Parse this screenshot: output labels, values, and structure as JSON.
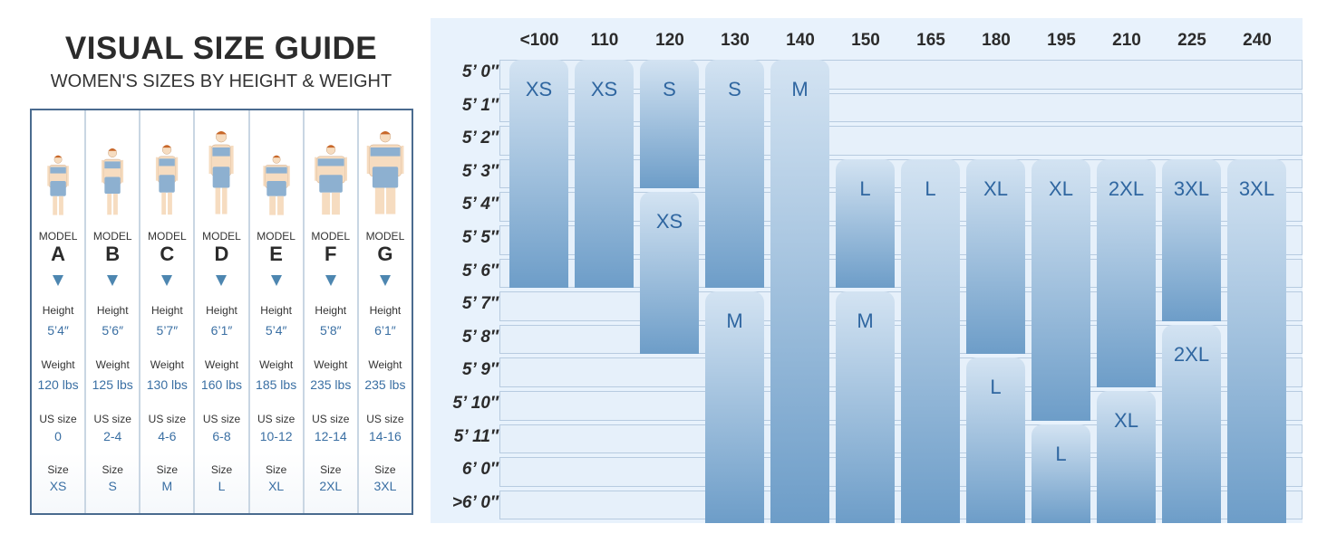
{
  "title": "VISUAL SIZE GUIDE",
  "subtitle": "WOMEN'S SIZES BY HEIGHT & WEIGHT",
  "labels": {
    "model": "MODEL",
    "height": "Height",
    "weight": "Weight",
    "us_size": "US size",
    "size": "Size"
  },
  "models": [
    {
      "letter": "A",
      "height": "5’4″",
      "weight": "120 lbs",
      "us_size": "0",
      "size": "XS"
    },
    {
      "letter": "B",
      "height": "5’6″",
      "weight": "125 lbs",
      "us_size": "2-4",
      "size": "S"
    },
    {
      "letter": "C",
      "height": "5’7″",
      "weight": "130 lbs",
      "us_size": "4-6",
      "size": "M"
    },
    {
      "letter": "D",
      "height": "6’1″",
      "weight": "160 lbs",
      "us_size": "6-8",
      "size": "L"
    },
    {
      "letter": "E",
      "height": "5’4″",
      "weight": "185 lbs",
      "us_size": "10-12",
      "size": "XL"
    },
    {
      "letter": "F",
      "height": "5’8″",
      "weight": "235 lbs",
      "us_size": "12-14",
      "size": "2XL"
    },
    {
      "letter": "G",
      "height": "6’1″",
      "weight": "235 lbs",
      "us_size": "14-16",
      "size": "3XL"
    }
  ],
  "chart": {
    "weights": [
      "<100",
      "110",
      "120",
      "130",
      "140",
      "150",
      "165",
      "180",
      "195",
      "210",
      "225",
      "240"
    ],
    "heights": [
      "5’ 0″",
      "5’ 1″",
      "5’ 2″",
      "5’ 3″",
      "5’ 4″",
      "5’ 5″",
      "5’ 6″",
      "5’ 7″",
      "5’ 8″",
      "5’ 9″",
      "5’ 10″",
      "5’ 11″",
      "6’ 0″",
      ">6’ 0″"
    ],
    "blocks": [
      {
        "weight": "<100",
        "from": "5’ 0″",
        "to": "5’ 6″",
        "size": "XS"
      },
      {
        "weight": "110",
        "from": "5’ 0″",
        "to": "5’ 6″",
        "size": "XS"
      },
      {
        "weight": "120",
        "from": "5’ 0″",
        "to": "5’ 3″",
        "size": "S"
      },
      {
        "weight": "120",
        "from": "5’ 4″",
        "to": "5’ 8″",
        "size": "XS"
      },
      {
        "weight": "130",
        "from": "5’ 0″",
        "to": "5’ 6″",
        "size": "S"
      },
      {
        "weight": "130",
        "from": "5’ 7″",
        "to": ">6’ 0″",
        "size": "M"
      },
      {
        "weight": "140",
        "from": "5’ 0″",
        "to": ">6’ 0″",
        "size": "M"
      },
      {
        "weight": "150",
        "from": "5’ 3″",
        "to": "5’ 6″",
        "size": "L"
      },
      {
        "weight": "150",
        "from": "5’ 7″",
        "to": ">6’ 0″",
        "size": "M"
      },
      {
        "weight": "165",
        "from": "5’ 3″",
        "to": ">6’ 0″",
        "size": "L"
      },
      {
        "weight": "180",
        "from": "5’ 3″",
        "to": "5’ 8″",
        "size": "XL"
      },
      {
        "weight": "180",
        "from": "5’ 9″",
        "to": ">6’ 0″",
        "size": "L"
      },
      {
        "weight": "195",
        "from": "5’ 3″",
        "to": "5’ 10″",
        "size": "XL"
      },
      {
        "weight": "195",
        "from": "5’ 11″",
        "to": ">6’ 0″",
        "size": "L"
      },
      {
        "weight": "210",
        "from": "5’ 3″",
        "to": "5’ 9″",
        "size": "2XL"
      },
      {
        "weight": "210",
        "from": "5’ 10″",
        "to": ">6’ 0″",
        "size": "XL"
      },
      {
        "weight": "225",
        "from": "5’ 3″",
        "to": "5’ 7″",
        "size": "3XL"
      },
      {
        "weight": "225",
        "from": "5’ 8″",
        "to": ">6’ 0″",
        "size": "2XL"
      },
      {
        "weight": "240",
        "from": "5’ 3″",
        "to": ">6’ 0″",
        "size": "3XL"
      }
    ]
  },
  "colors": {
    "accent": "#3a6fa3",
    "border": "#4a6b8f",
    "bar_top": "#d3e3f2",
    "bar_bottom": "#6d9dc8",
    "panel": "#e8f2fc"
  }
}
